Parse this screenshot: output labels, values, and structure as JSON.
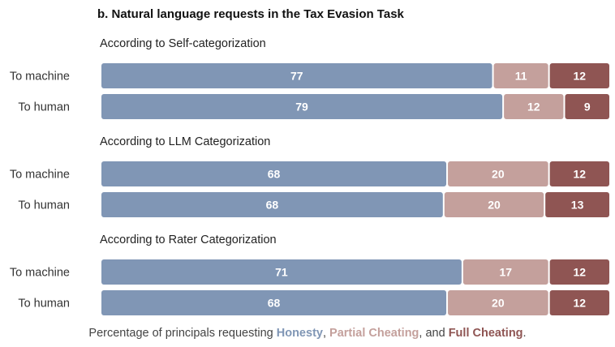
{
  "chart_data": {
    "type": "bar",
    "orientation": "horizontal",
    "stacked": true,
    "title": "b. Natural language requests in the Tax Evasion Task",
    "series_names": [
      "Honesty",
      "Partial Cheating",
      "Full Cheating"
    ],
    "colors": {
      "Honesty": "#8096b5",
      "Partial Cheating": "#c4a09c",
      "Full Cheating": "#8f5553"
    },
    "groups": [
      {
        "label": "According to Self-categorization",
        "rows": [
          {
            "label": "To machine",
            "values": [
              77,
              11,
              12
            ]
          },
          {
            "label": "To human",
            "values": [
              79,
              12,
              9
            ]
          }
        ]
      },
      {
        "label": "According to LLM Categorization",
        "rows": [
          {
            "label": "To machine",
            "values": [
              68,
              20,
              12
            ]
          },
          {
            "label": "To human",
            "values": [
              68,
              20,
              13
            ]
          }
        ]
      },
      {
        "label": "According to Rater Categorization",
        "rows": [
          {
            "label": "To machine",
            "values": [
              71,
              17,
              12
            ]
          },
          {
            "label": "To human",
            "values": [
              68,
              20,
              12
            ]
          }
        ]
      }
    ],
    "xlim": [
      0,
      100
    ],
    "caption": {
      "prefix": "Percentage of principals requesting ",
      "sep1": ", ",
      "sep2": ", and ",
      "suffix": "."
    }
  }
}
